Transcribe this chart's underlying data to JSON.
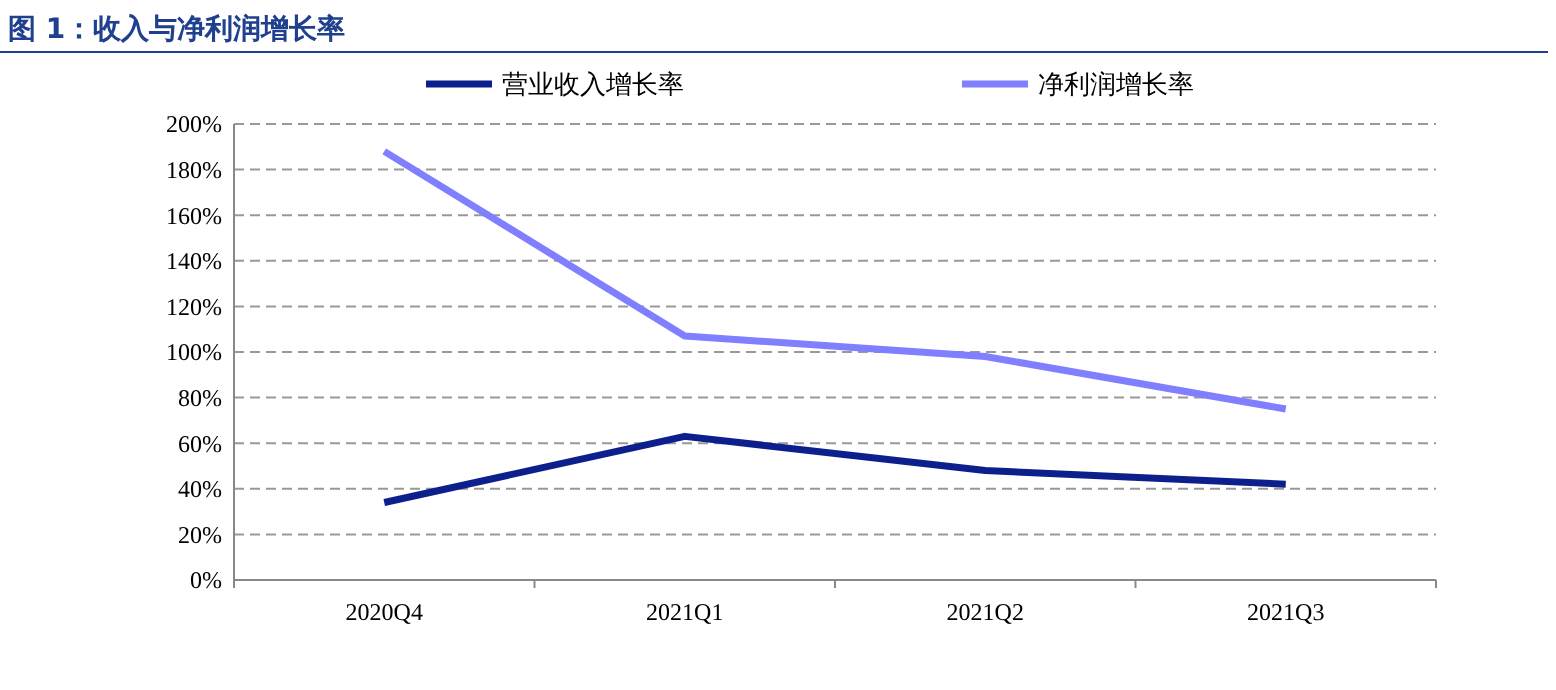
{
  "chart_data": {
    "type": "line",
    "title": "图 1：收入与净利润增长率",
    "categories": [
      "2020Q4",
      "2021Q1",
      "2021Q2",
      "2021Q3"
    ],
    "series": [
      {
        "name": "营业收入增长率",
        "color": "#0d1f8c",
        "values": [
          34,
          63,
          48,
          42
        ]
      },
      {
        "name": "净利润增长率",
        "color": "#7f7fff",
        "values": [
          188,
          107,
          98,
          75
        ]
      }
    ],
    "ylim": [
      0,
      200
    ],
    "yticks": [
      {
        "value": 0,
        "label": "0%"
      },
      {
        "value": 20,
        "label": "20%"
      },
      {
        "value": 40,
        "label": "40%"
      },
      {
        "value": 60,
        "label": "60%"
      },
      {
        "value": 80,
        "label": "80%"
      },
      {
        "value": 100,
        "label": "100%"
      },
      {
        "value": 120,
        "label": "120%"
      },
      {
        "value": 140,
        "label": "140%"
      },
      {
        "value": 160,
        "label": "160%"
      },
      {
        "value": 180,
        "label": "180%"
      },
      {
        "value": 200,
        "label": "200%"
      }
    ],
    "grid": "y",
    "legend": "top",
    "marker": "none",
    "line_style": "solid"
  }
}
